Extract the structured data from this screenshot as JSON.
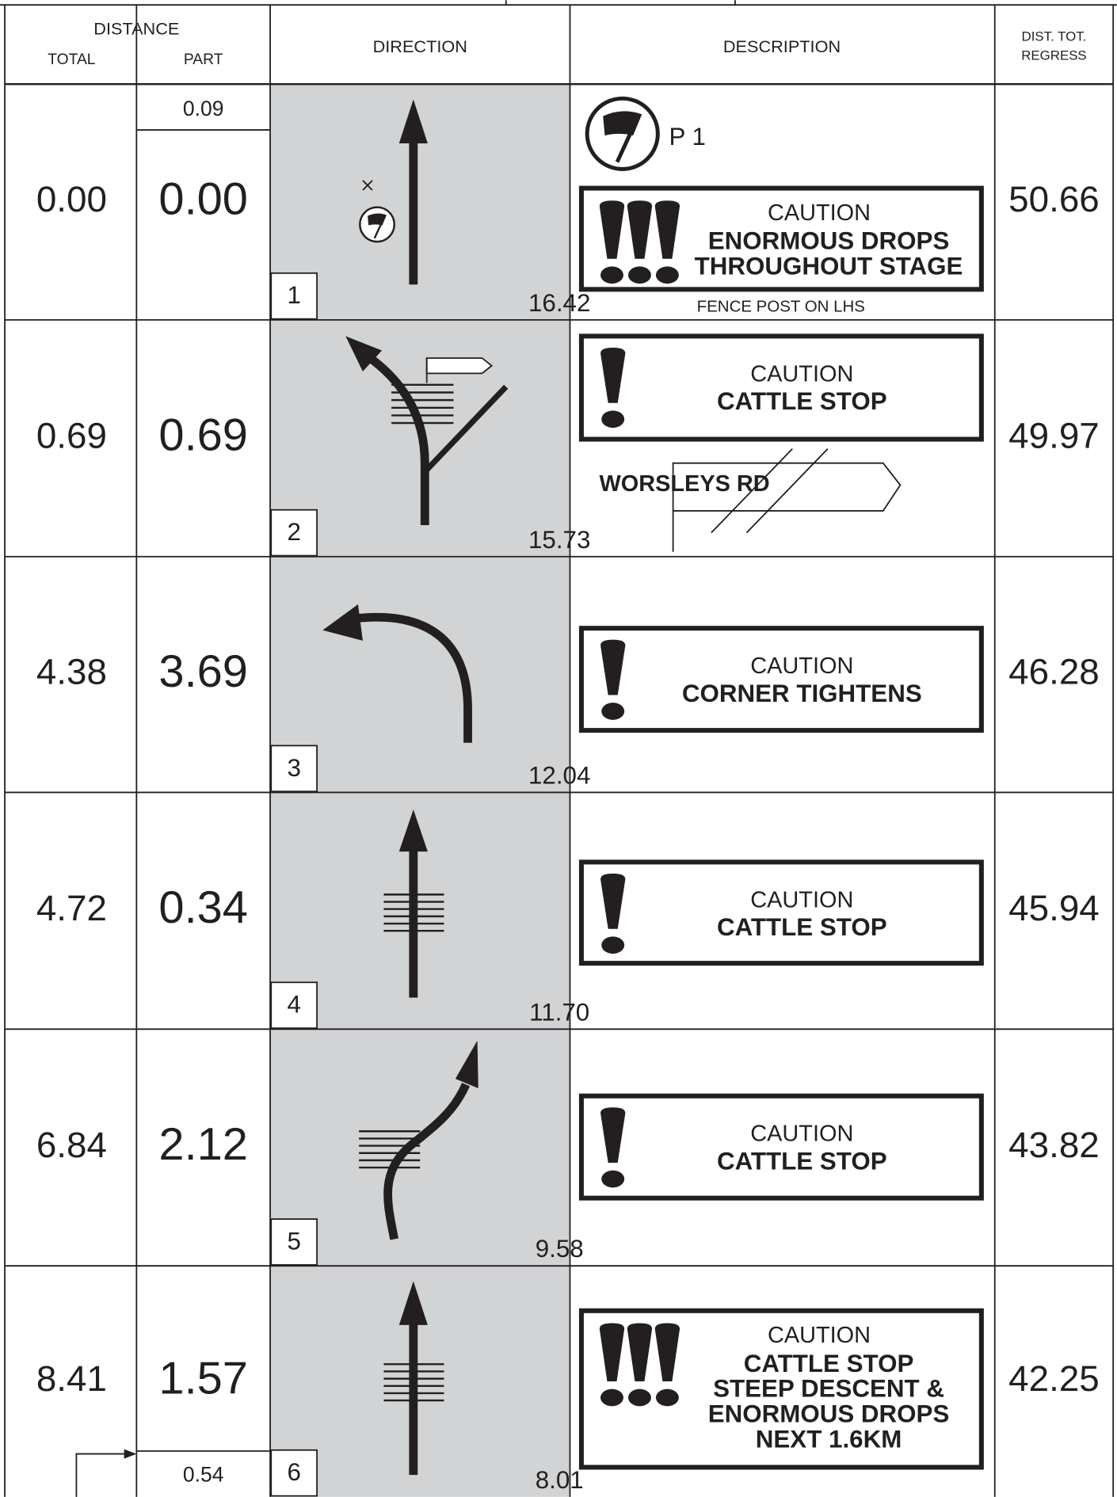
{
  "header": {
    "distance": "DISTANCE",
    "total": "TOTAL",
    "part": "PART",
    "direction": "DIRECTION",
    "description": "DESCRIPTION",
    "regress_line1": "DIST. TOT.",
    "regress_line2": "REGRESS"
  },
  "rows": [
    {
      "total": "0.00",
      "part": "0.00",
      "part_top": "0.09",
      "number": "1",
      "distance": "16.42",
      "regress": "50.66",
      "point": "P 1",
      "caution": "CAUTION",
      "details": [
        "ENORMOUS DROPS",
        "THROUGHOUT STAGE"
      ],
      "note": "FENCE POST ON LHS"
    },
    {
      "total": "0.69",
      "part": "0.69",
      "number": "2",
      "distance": "15.73",
      "regress": "49.97",
      "caution": "CAUTION",
      "details": [
        "CATTLE STOP"
      ],
      "sign": "WORSLEYS RD"
    },
    {
      "total": "4.38",
      "part": "3.69",
      "number": "3",
      "distance": "12.04",
      "regress": "46.28",
      "caution": "CAUTION",
      "details": [
        "CORNER TIGHTENS"
      ]
    },
    {
      "total": "4.72",
      "part": "0.34",
      "number": "4",
      "distance": "11.70",
      "regress": "45.94",
      "caution": "CAUTION",
      "details": [
        "CATTLE STOP"
      ]
    },
    {
      "total": "6.84",
      "part": "2.12",
      "number": "5",
      "distance": "9.58",
      "regress": "43.82",
      "caution": "CAUTION",
      "details": [
        "CATTLE STOP"
      ]
    },
    {
      "total": "8.41",
      "part": "1.57",
      "part_bottom": "0.54",
      "number": "6",
      "distance": "8.01",
      "regress": "42.25",
      "caution": "CAUTION",
      "details": [
        "CATTLE STOP",
        "STEEP DESCENT &",
        "ENORMOUS DROPS",
        "NEXT 1.6KM"
      ]
    }
  ]
}
